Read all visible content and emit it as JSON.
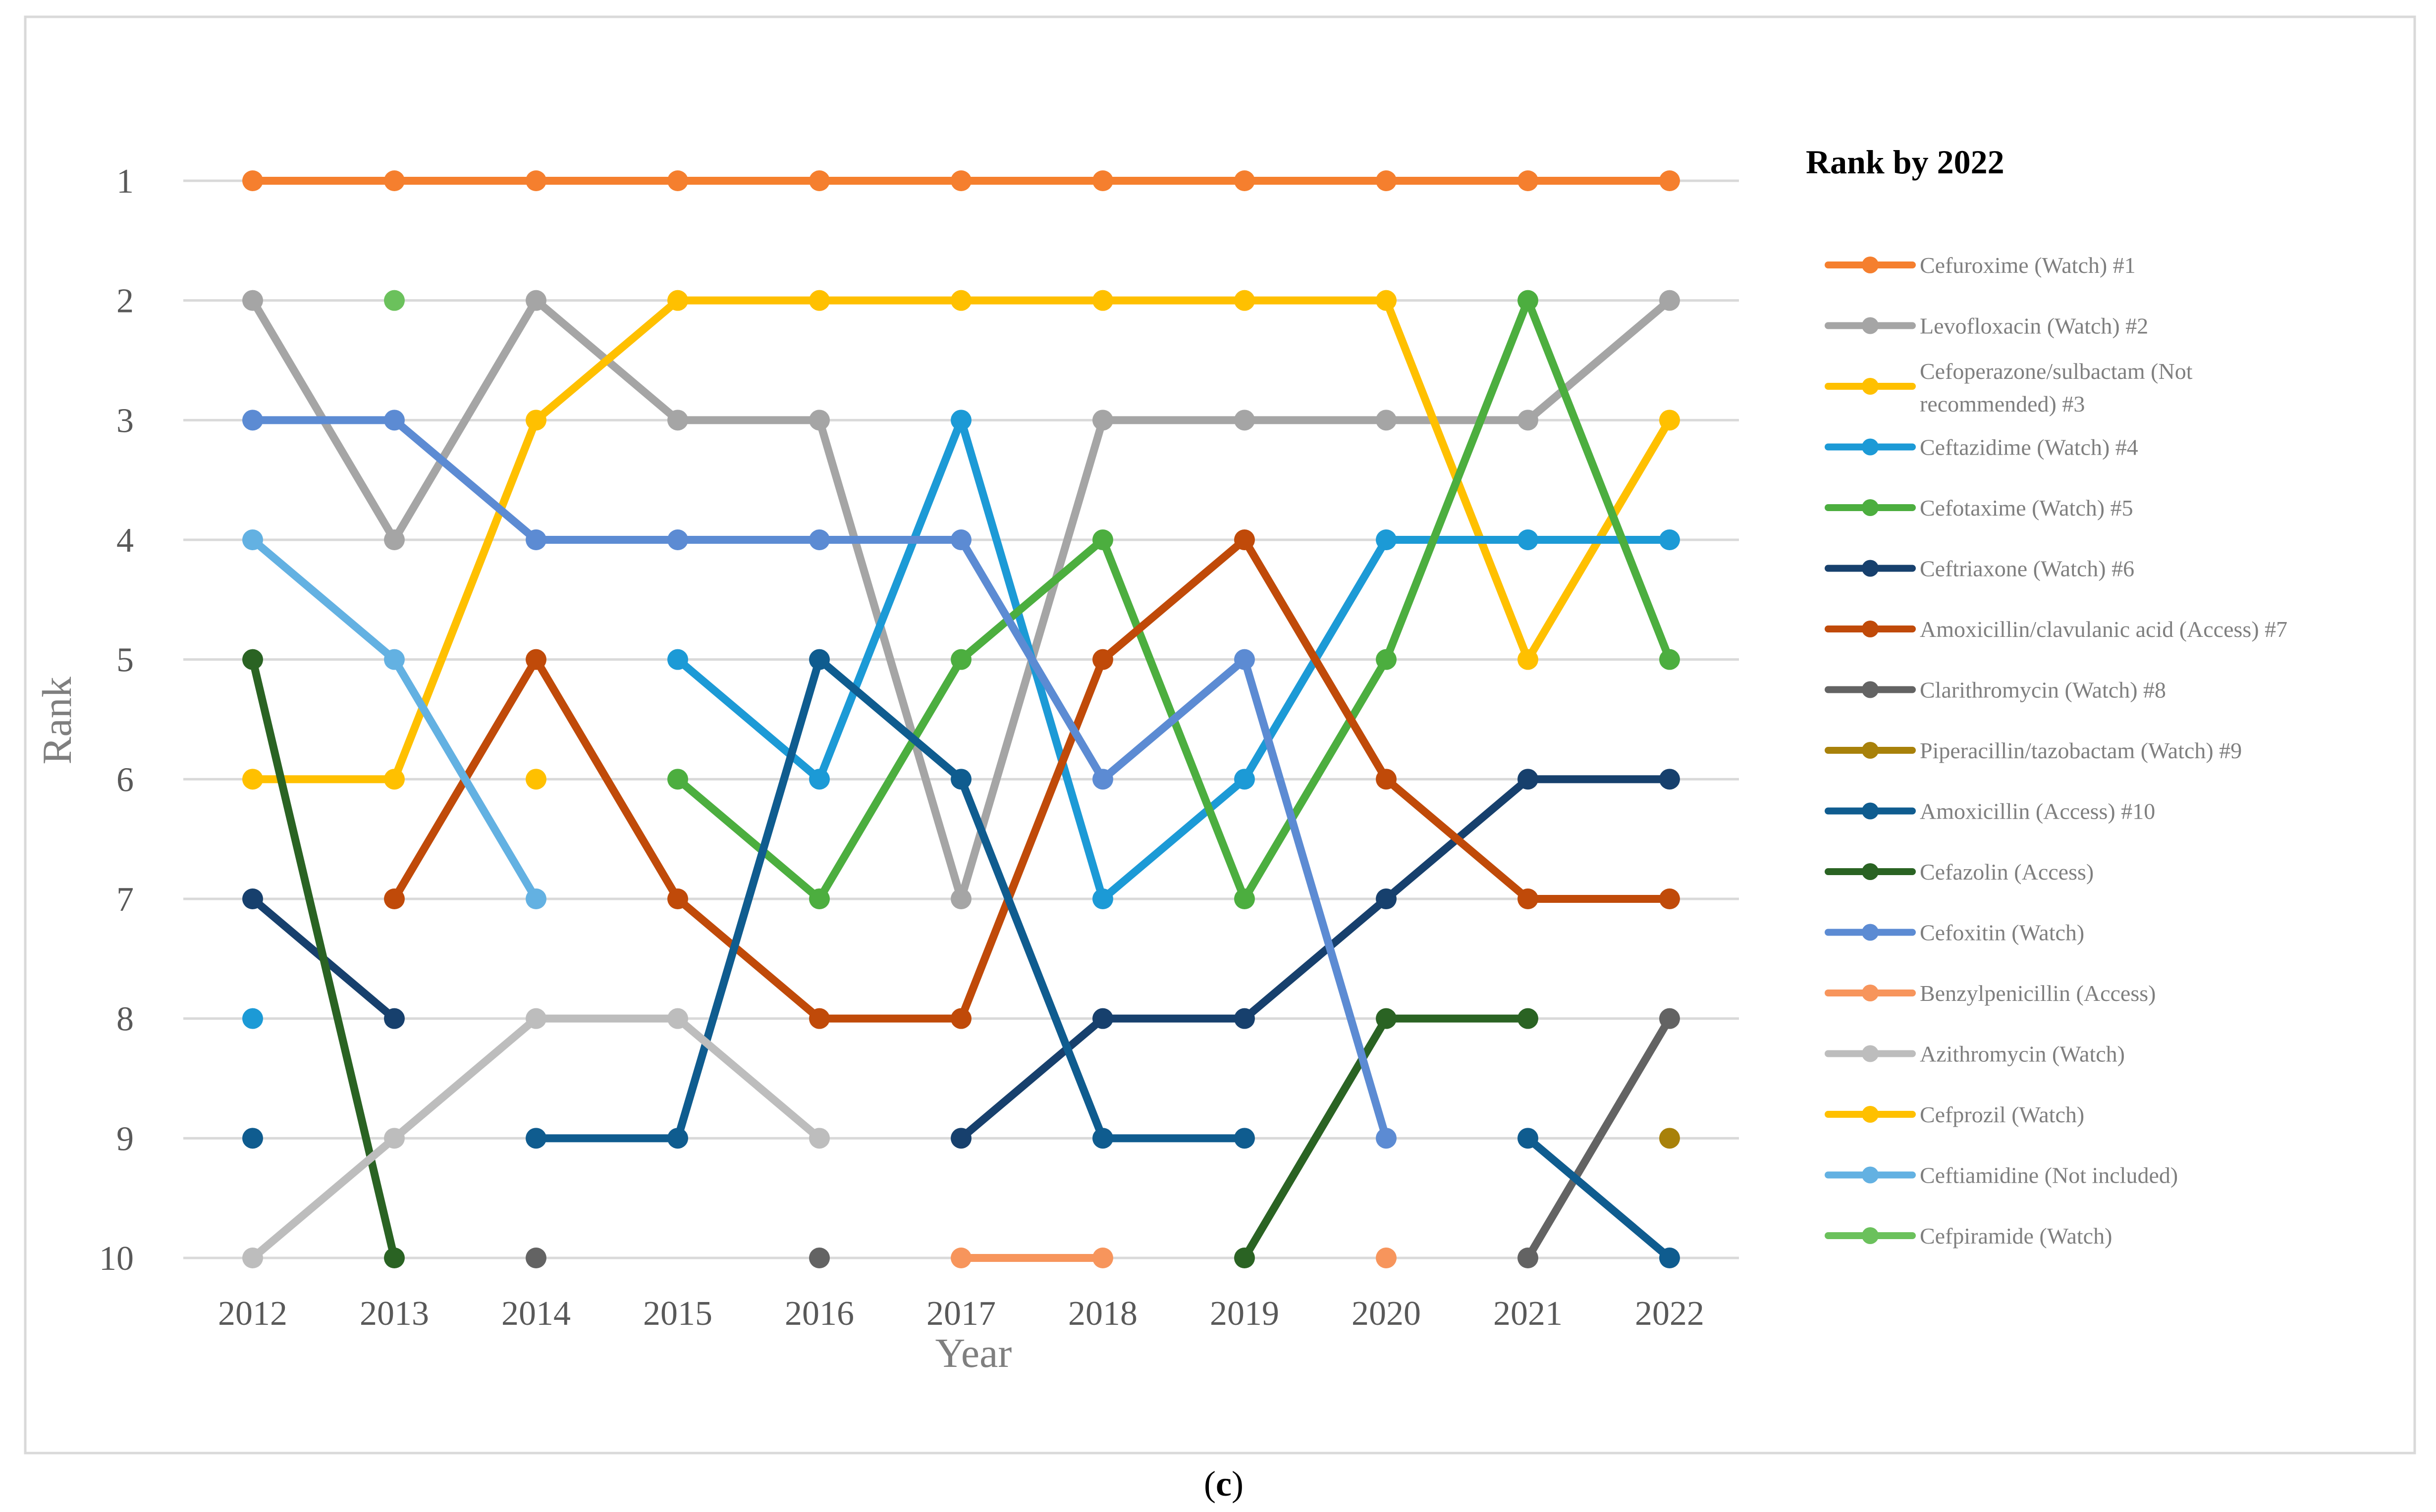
{
  "chart_data": {
    "type": "line",
    "title": "",
    "xlabel": "Year",
    "ylabel": "Rank",
    "legend_title": "Rank by 2022",
    "legend_position": "right",
    "caption_open": "(",
    "caption_letter": "c",
    "caption_close": ")",
    "y_inverted": true,
    "ylim": [
      1,
      10
    ],
    "y_ticks": [
      "1",
      "2",
      "3",
      "4",
      "5",
      "6",
      "7",
      "8",
      "9",
      "10"
    ],
    "categories": [
      "2012",
      "2013",
      "2014",
      "2015",
      "2016",
      "2017",
      "2018",
      "2019",
      "2020",
      "2021",
      "2022"
    ],
    "series": [
      {
        "name": "Cefuroxime (Watch) #1",
        "color": "#F57F2E",
        "values": [
          1,
          1,
          1,
          1,
          1,
          1,
          1,
          1,
          1,
          1,
          1
        ]
      },
      {
        "name": "Levofloxacin (Watch) #2",
        "color": "#A5A5A5",
        "values": [
          2,
          4,
          2,
          3,
          3,
          7,
          3,
          3,
          3,
          3,
          2
        ]
      },
      {
        "name": "Cefoperazone/sulbactam (Not recommended) #3",
        "legend_lines": [
          "Cefoperazone/sulbactam (Not",
          "recommended) #3"
        ],
        "color": "#FFC000",
        "values": [
          6,
          6,
          3,
          2,
          2,
          2,
          2,
          2,
          2,
          5,
          3
        ]
      },
      {
        "name": "Ceftazidime (Watch) #4",
        "color": "#1C9AD6",
        "values": [
          8,
          null,
          null,
          5,
          6,
          3,
          7,
          6,
          4,
          4,
          4
        ]
      },
      {
        "name": "Cefotaxime (Watch) #5",
        "color": "#4CAE3F",
        "values": [
          null,
          null,
          null,
          6,
          7,
          5,
          4,
          7,
          5,
          2,
          5
        ]
      },
      {
        "name": "Ceftriaxone (Watch) #6",
        "color": "#17406D",
        "values": [
          7,
          8,
          null,
          null,
          null,
          9,
          8,
          8,
          7,
          6,
          6
        ]
      },
      {
        "name": "Amoxicillin/clavulanic acid (Access) #7",
        "color": "#C04A09",
        "values": [
          null,
          7,
          5,
          7,
          8,
          8,
          5,
          4,
          6,
          7,
          7
        ]
      },
      {
        "name": "Clarithromycin (Watch) #8",
        "color": "#636363",
        "values": [
          null,
          null,
          10,
          null,
          10,
          null,
          null,
          null,
          null,
          10,
          8
        ]
      },
      {
        "name": "Piperacillin/tazobactam (Watch) #9",
        "color": "#A8810A",
        "values": [
          null,
          null,
          null,
          null,
          null,
          null,
          null,
          null,
          null,
          null,
          9
        ]
      },
      {
        "name": "Amoxicillin (Access) #10",
        "color": "#0F5C8F",
        "values": [
          9,
          null,
          9,
          9,
          5,
          6,
          9,
          9,
          null,
          9,
          10
        ]
      },
      {
        "name": "Cefazolin (Access)",
        "color": "#2A6323",
        "values": [
          5,
          10,
          null,
          null,
          null,
          null,
          null,
          10,
          8,
          8,
          null
        ]
      },
      {
        "name": "Cefoxitin (Watch)",
        "color": "#5C8BD3",
        "values": [
          3,
          3,
          4,
          4,
          4,
          4,
          6,
          5,
          9,
          null,
          null
        ]
      },
      {
        "name": "Benzylpenicillin (Access)",
        "color": "#F7955C",
        "values": [
          null,
          null,
          null,
          null,
          null,
          10,
          10,
          null,
          10,
          null,
          null
        ]
      },
      {
        "name": "Azithromycin (Watch)",
        "color": "#BDBDBD",
        "values": [
          10,
          9,
          8,
          8,
          9,
          null,
          null,
          null,
          null,
          null,
          null
        ]
      },
      {
        "name": "Cefprozil (Watch)",
        "color": "#FFC000",
        "values": [
          null,
          null,
          6,
          null,
          null,
          null,
          null,
          null,
          null,
          null,
          null
        ]
      },
      {
        "name": "Ceftiamidine (Not included)",
        "color": "#63B1E2",
        "values": [
          4,
          5,
          7,
          null,
          null,
          null,
          null,
          null,
          null,
          null,
          null
        ]
      },
      {
        "name": "Cefpiramide (Watch)",
        "color": "#6BC15C",
        "values": [
          null,
          2,
          null,
          null,
          null,
          null,
          null,
          null,
          null,
          null,
          null
        ]
      }
    ]
  }
}
